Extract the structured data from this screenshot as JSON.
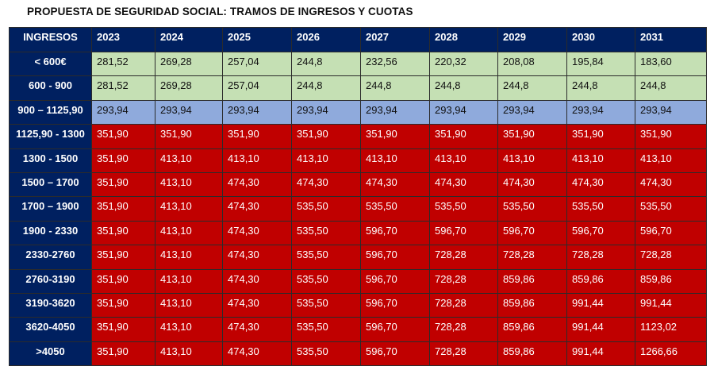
{
  "title": "PROPUESTA DE SEGURIDAD SOCIAL: TRAMOS DE INGRESOS Y CUOTAS",
  "colors": {
    "header": "#002060",
    "green": "#c5e0b4",
    "blue": "#8faadc",
    "red": "#c00000"
  },
  "table": {
    "row_header_label": "INGRESOS",
    "years": [
      "2023",
      "2024",
      "2025",
      "2026",
      "2027",
      "2028",
      "2029",
      "2030",
      "2031"
    ],
    "rows": [
      {
        "label": "< 600€",
        "color": "green",
        "values": [
          "281,52",
          "269,28",
          "257,04",
          "244,8",
          "232,56",
          "220,32",
          "208,08",
          "195,84",
          "183,60"
        ]
      },
      {
        "label": "600 - 900",
        "color": "green",
        "values": [
          "281,52",
          "269,28",
          "257,04",
          "244,8",
          "244,8",
          "244,8",
          "244,8",
          "244,8",
          "244,8"
        ]
      },
      {
        "label": "900 – 1125,90",
        "color": "blue",
        "values": [
          "293,94",
          "293,94",
          "293,94",
          "293,94",
          "293,94",
          "293,94",
          "293,94",
          "293,94",
          "293,94"
        ]
      },
      {
        "label": "1125,90 - 1300",
        "color": "red",
        "values": [
          "351,90",
          "351,90",
          "351,90",
          "351,90",
          "351,90",
          "351,90",
          "351,90",
          "351,90",
          "351,90"
        ]
      },
      {
        "label": "1300 - 1500",
        "color": "red",
        "values": [
          "351,90",
          "413,10",
          "413,10",
          "413,10",
          "413,10",
          "413,10",
          "413,10",
          "413,10",
          "413,10"
        ]
      },
      {
        "label": "1500 – 1700",
        "color": "red",
        "values": [
          "351,90",
          "413,10",
          "474,30",
          "474,30",
          "474,30",
          "474,30",
          "474,30",
          "474,30",
          "474,30"
        ]
      },
      {
        "label": "1700 – 1900",
        "color": "red",
        "values": [
          "351,90",
          "413,10",
          "474,30",
          "535,50",
          "535,50",
          "535,50",
          "535,50",
          "535,50",
          "535,50"
        ]
      },
      {
        "label": "1900 - 2330",
        "color": "red",
        "values": [
          "351,90",
          "413,10",
          "474,30",
          "535,50",
          "596,70",
          "596,70",
          "596,70",
          "596,70",
          "596,70"
        ]
      },
      {
        "label": "2330-2760",
        "color": "red",
        "values": [
          "351,90",
          "413,10",
          "474,30",
          "535,50",
          "596,70",
          "728,28",
          "728,28",
          "728,28",
          "728,28"
        ]
      },
      {
        "label": "2760-3190",
        "color": "red",
        "values": [
          "351,90",
          "413,10",
          "474,30",
          "535,50",
          "596,70",
          "728,28",
          "859,86",
          "859,86",
          "859,86"
        ]
      },
      {
        "label": "3190-3620",
        "color": "red",
        "values": [
          "351,90",
          "413,10",
          "474,30",
          "535,50",
          "596,70",
          "728,28",
          "859,86",
          "991,44",
          "991,44"
        ]
      },
      {
        "label": "3620-4050",
        "color": "red",
        "values": [
          "351,90",
          "413,10",
          "474,30",
          "535,50",
          "596,70",
          "728,28",
          "859,86",
          "991,44",
          "1123,02"
        ]
      },
      {
        "label": ">4050",
        "color": "red",
        "values": [
          "351,90",
          "413,10",
          "474,30",
          "535,50",
          "596,70",
          "728,28",
          "859,86",
          "991,44",
          "1266,66"
        ]
      }
    ]
  }
}
